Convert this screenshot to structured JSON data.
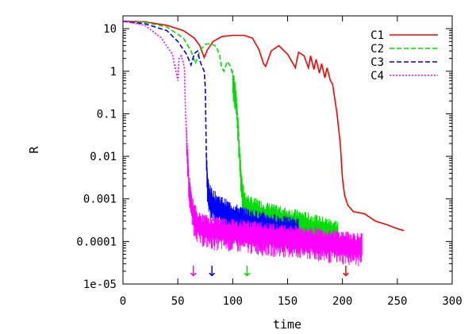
{
  "chart_data": {
    "type": "line",
    "xlabel": "time",
    "ylabel": "R",
    "xlim": [
      0,
      300
    ],
    "ylim": [
      1e-05,
      20
    ],
    "yscale": "log",
    "xticks": [
      0,
      50,
      100,
      150,
      200,
      250,
      300
    ],
    "yticks": [
      {
        "value": 10,
        "label": "10"
      },
      {
        "value": 1,
        "label": "1"
      },
      {
        "value": 0.1,
        "label": "0.1"
      },
      {
        "value": 0.01,
        "label": "0.01"
      },
      {
        "value": 0.001,
        "label": "0.001"
      },
      {
        "value": 0.0001,
        "label": "0.0001"
      },
      {
        "value": 1e-05,
        "label": "1e-05"
      }
    ],
    "legend_position": "top-right",
    "series": [
      {
        "name": "C1",
        "color": "#ff0000",
        "dash": "solid",
        "x": [
          0,
          20,
          40,
          55,
          65,
          70,
          74,
          77,
          82,
          90,
          100,
          110,
          118,
          124,
          128,
          130,
          135,
          142,
          150,
          155,
          157,
          160,
          165,
          169,
          171,
          174,
          176,
          179,
          181,
          184,
          186,
          189,
          191,
          195,
          198,
          200,
          202,
          205,
          210,
          220,
          230,
          240,
          250,
          256
        ],
        "y": [
          15,
          14.5,
          12,
          9,
          6,
          4,
          2.1,
          3.2,
          5,
          6.5,
          7,
          7,
          6,
          3.2,
          1.5,
          1.3,
          3,
          4,
          2.5,
          1.5,
          1.2,
          2.8,
          2.3,
          1.2,
          2.3,
          1.1,
          1.9,
          0.9,
          1.5,
          0.7,
          1.2,
          0.6,
          0.5,
          0.1,
          0.02,
          0.003,
          0.0012,
          0.0007,
          0.0005,
          0.00045,
          0.0003,
          0.00025,
          0.0002,
          0.00018
        ]
      },
      {
        "name": "C2",
        "color": "#00dd00",
        "dash": "dashed",
        "x": [
          0,
          20,
          40,
          55,
          62,
          66,
          70,
          75,
          80,
          85,
          88,
          90,
          92,
          95,
          98,
          100,
          103,
          105,
          107,
          109,
          112,
          117,
          125,
          140,
          160,
          180,
          196
        ],
        "y": [
          15,
          14,
          11,
          6,
          3,
          1.5,
          3,
          4.3,
          4.5,
          3.8,
          2.4,
          1.2,
          1.0,
          1.7,
          1.3,
          0.8,
          0.3,
          0.05,
          0.006,
          0.0015,
          0.0009,
          0.0007,
          0.0006,
          0.00045,
          0.00035,
          0.00025,
          0.0002
        ]
      },
      {
        "name": "C3",
        "color": "#0000ff",
        "dash": "dashed",
        "x": [
          0,
          20,
          40,
          50,
          58,
          62,
          65,
          68,
          70,
          72,
          74,
          75,
          76,
          77,
          80,
          85,
          95,
          110,
          130,
          150,
          160
        ],
        "y": [
          15,
          13,
          9,
          5,
          2.5,
          1.4,
          2.6,
          3.0,
          1.8,
          1.3,
          1.0,
          0.4,
          0.01,
          0.0025,
          0.0012,
          0.0009,
          0.0006,
          0.0004,
          0.0003,
          0.00025,
          0.00023
        ]
      },
      {
        "name": "C4",
        "color": "#ff00ff",
        "dash": "dotted",
        "x": [
          0,
          20,
          35,
          45,
          50,
          51,
          53,
          55,
          56,
          57,
          58,
          59,
          60,
          62,
          65,
          70,
          80,
          100,
          130,
          160,
          190,
          218
        ],
        "y": [
          15,
          12,
          6,
          2.5,
          0.6,
          2.0,
          2.3,
          1.6,
          1.1,
          0.1,
          0.03,
          0.01,
          0.003,
          0.001,
          0.0005,
          0.0003,
          0.00025,
          0.00022,
          0.00018,
          0.00015,
          0.00012,
          0.0001
        ]
      }
    ],
    "noise_bands": [
      {
        "series": "C2",
        "x_start": 100,
        "x_end": 196
      },
      {
        "series": "C3",
        "x_start": 76,
        "x_end": 160
      },
      {
        "series": "C4",
        "x_start": 58,
        "x_end": 218
      }
    ],
    "markers": [
      {
        "x": 64,
        "color": "#ff00ff",
        "glyph": "↓"
      },
      {
        "x": 81,
        "color": "#0000ff",
        "glyph": "↓"
      },
      {
        "x": 113,
        "color": "#00dd00",
        "glyph": "↓"
      },
      {
        "x": 203,
        "color": "#ff0000",
        "glyph": "↓"
      }
    ]
  }
}
